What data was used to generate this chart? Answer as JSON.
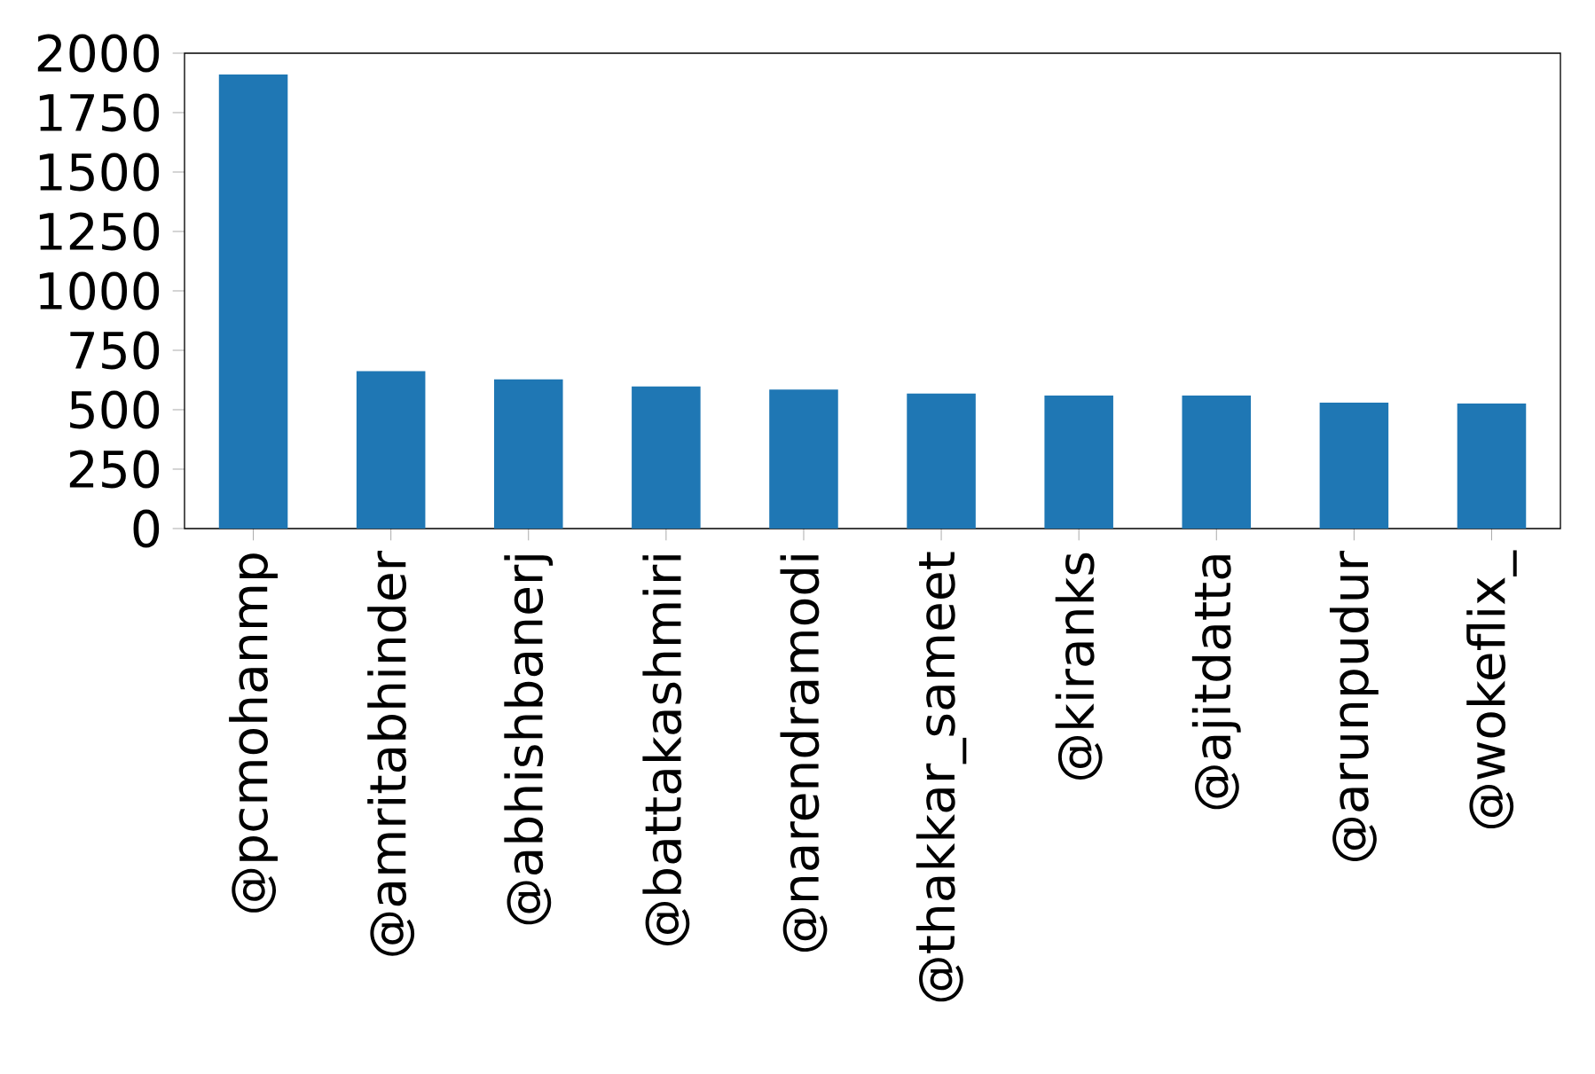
{
  "chart_data": {
    "type": "bar",
    "categories": [
      "@pcmohanmp",
      "@amritabhinder",
      "@abhishbanerj",
      "@battakashmiri",
      "@narendramodi",
      "@thakkar_sameet",
      "@kiranks",
      "@ajitdatta",
      "@arunpudur",
      "@wokeflix_"
    ],
    "values": [
      1910,
      662,
      628,
      598,
      585,
      568,
      560,
      560,
      530,
      526
    ],
    "color": "#1f77b4",
    "ylim": [
      0,
      2000
    ],
    "yticks": [
      0,
      250,
      500,
      750,
      1000,
      1250,
      1500,
      1750,
      2000
    ]
  }
}
